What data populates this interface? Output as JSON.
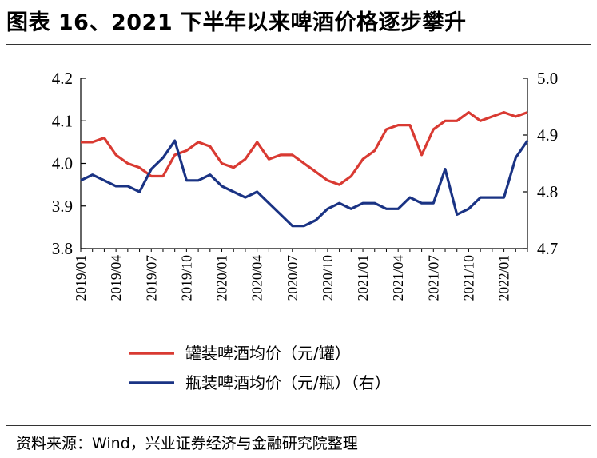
{
  "title": "图表 16、2021 下半年以来啤酒价格逐步攀升",
  "source": "资料来源：Wind，兴业证券经济与金融研究院整理",
  "colors": {
    "canned": "#d93a32",
    "bottled": "#1a3384"
  },
  "chart_data": {
    "type": "line",
    "x": [
      "2019/01",
      "2019/02",
      "2019/03",
      "2019/04",
      "2019/05",
      "2019/06",
      "2019/07",
      "2019/08",
      "2019/09",
      "2019/10",
      "2019/11",
      "2019/12",
      "2020/01",
      "2020/02",
      "2020/03",
      "2020/04",
      "2020/05",
      "2020/06",
      "2020/07",
      "2020/08",
      "2020/09",
      "2020/10",
      "2020/11",
      "2020/12",
      "2021/01",
      "2021/02",
      "2021/03",
      "2021/04",
      "2021/05",
      "2021/06",
      "2021/07",
      "2021/08",
      "2021/09",
      "2021/10",
      "2021/11",
      "2021/12",
      "2022/01",
      "2022/02",
      "2022/03"
    ],
    "xticks": [
      "2019/01",
      "2019/04",
      "2019/07",
      "2019/10",
      "2020/01",
      "2020/04",
      "2020/07",
      "2020/10",
      "2021/01",
      "2021/04",
      "2021/07",
      "2021/10",
      "2022/01"
    ],
    "series": [
      {
        "name": "罐装啤酒均价（元/罐）",
        "axis": "left",
        "values": [
          4.05,
          4.05,
          4.06,
          4.02,
          4.0,
          3.99,
          3.97,
          3.97,
          4.02,
          4.03,
          4.05,
          4.04,
          4.0,
          3.99,
          4.01,
          4.05,
          4.01,
          4.02,
          4.02,
          4.0,
          3.98,
          3.96,
          3.95,
          3.97,
          4.01,
          4.03,
          4.08,
          4.09,
          4.09,
          4.02,
          4.08,
          4.1,
          4.1,
          4.12,
          4.1,
          4.11,
          4.12,
          4.11,
          4.12
        ]
      },
      {
        "name": "瓶装啤酒均价（元/瓶）（右）",
        "axis": "right",
        "values": [
          4.82,
          4.83,
          4.82,
          4.81,
          4.81,
          4.8,
          4.84,
          4.86,
          4.89,
          4.82,
          4.82,
          4.83,
          4.81,
          4.8,
          4.79,
          4.8,
          4.78,
          4.76,
          4.74,
          4.74,
          4.75,
          4.77,
          4.78,
          4.77,
          4.78,
          4.78,
          4.77,
          4.77,
          4.79,
          4.78,
          4.78,
          4.84,
          4.76,
          4.77,
          4.79,
          4.79,
          4.79,
          4.86,
          4.89
        ]
      }
    ],
    "yticks_left": [
      "4.2",
      "4.1",
      "4.0",
      "3.9",
      "3.8"
    ],
    "yticks_right": [
      "5.0",
      "4.9",
      "4.8",
      "4.7"
    ],
    "ylim_left": [
      3.8,
      4.2
    ],
    "ylim_right": [
      4.7,
      5.0
    ],
    "legend_position": "bottom-center"
  }
}
